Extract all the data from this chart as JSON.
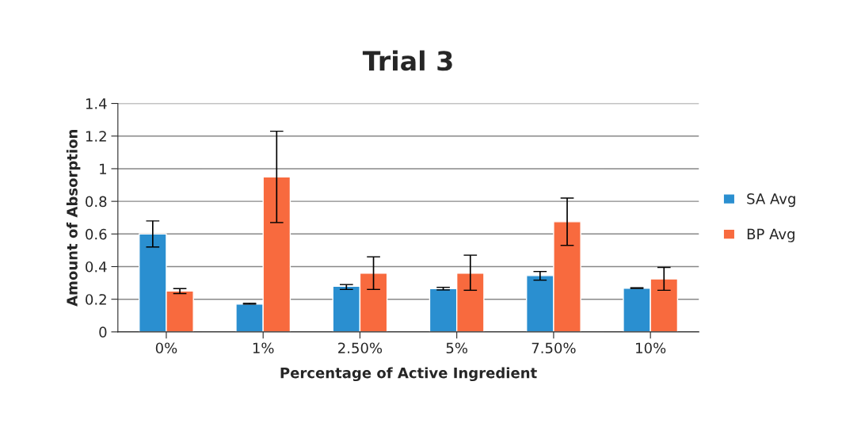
{
  "chart_data": {
    "type": "bar",
    "title": "Trial 3",
    "xlabel": "Percentage of Active Ingredient",
    "ylabel": "Amount of Absorption",
    "categories": [
      "0%",
      "1%",
      "2.50%",
      "5%",
      "7.50%",
      "10%"
    ],
    "series": [
      {
        "name": "SA Avg",
        "color": "#2a8fd0",
        "values": [
          0.6,
          0.17,
          0.28,
          0.265,
          0.345,
          0.268
        ],
        "errors": [
          [
            0.52,
            0.68
          ],
          [
            0.17,
            0.175
          ],
          [
            0.26,
            0.29
          ],
          [
            0.257,
            0.273
          ],
          [
            0.317,
            0.37
          ],
          [
            0.266,
            0.27
          ]
        ]
      },
      {
        "name": "BP Avg",
        "color": "#f86a3e",
        "values": [
          0.25,
          0.95,
          0.36,
          0.36,
          0.675,
          0.325
        ],
        "errors": [
          [
            0.235,
            0.265
          ],
          [
            0.67,
            1.23
          ],
          [
            0.26,
            0.46
          ],
          [
            0.255,
            0.47
          ],
          [
            0.53,
            0.82
          ],
          [
            0.255,
            0.395
          ]
        ]
      }
    ],
    "ylim": [
      0,
      1.4
    ],
    "yticks": [
      0,
      0.2,
      0.4,
      0.6,
      0.8,
      1,
      1.2,
      1.4
    ],
    "grid": "y",
    "legend": "right"
  }
}
